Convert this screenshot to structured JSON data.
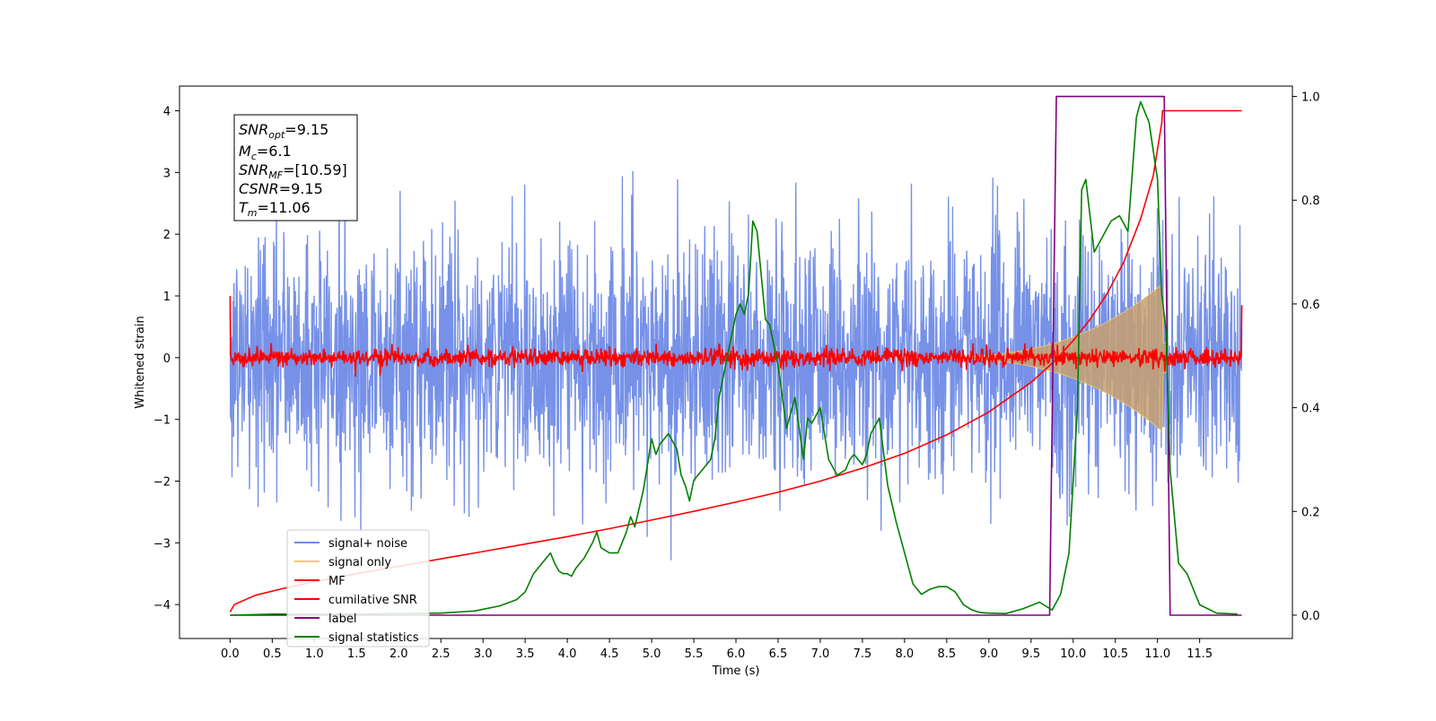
{
  "chart_data": {
    "type": "line",
    "xlabel": "Time (s)",
    "ylabel": "Whitened strain",
    "xlim": [
      -0.6,
      12.6
    ],
    "ylim": [
      -4.55,
      4.4
    ],
    "y2lim": [
      -0.045,
      1.02
    ],
    "x_ticks": [
      0.0,
      0.5,
      1.0,
      1.5,
      2.0,
      2.5,
      3.0,
      3.5,
      4.0,
      4.5,
      5.0,
      5.5,
      6.0,
      6.5,
      7.0,
      7.5,
      8.0,
      8.5,
      9.0,
      9.5,
      10.0,
      10.5,
      11.0,
      11.5
    ],
    "x_tick_labels": [
      "0.0",
      "0.5",
      "1.0",
      "1.5",
      "2.0",
      "2.5",
      "3.0",
      "3.5",
      "4.0",
      "4.5",
      "5.0",
      "5.5",
      "6.0",
      "6.5",
      "7.0",
      "7.5",
      "8.0",
      "8.5",
      "9.0",
      "9.5",
      "10.0",
      "10.5",
      "11.0",
      "11.5"
    ],
    "y_ticks": [
      -4,
      -3,
      -2,
      -1,
      0,
      1,
      2,
      3,
      4
    ],
    "y_tick_labels": [
      "−4",
      "−3",
      "−2",
      "−1",
      "0",
      "1",
      "2",
      "3",
      "4"
    ],
    "y2_ticks": [
      0.0,
      0.2,
      0.4,
      0.6,
      0.8,
      1.0
    ],
    "y2_tick_labels": [
      "0.0",
      "0.2",
      "0.4",
      "0.6",
      "0.8",
      "1.0"
    ],
    "grid": false,
    "legend_position": "lower-left",
    "series": [
      {
        "name": "signal+ noise",
        "axis": "left",
        "color": "#6f8be6",
        "description_values": {
          "mean": 0.0,
          "typical_amplitude": 1.0,
          "peak_max": 4.0,
          "peak_min": -4.15,
          "x_range": [
            0.0,
            12.0
          ]
        }
      },
      {
        "name": "signal only",
        "axis": "left",
        "color": "#f5c96b",
        "chirp": {
          "start_time": 8.0,
          "merger_time": 11.06,
          "peak_amplitude": 1.2
        }
      },
      {
        "name": "MF",
        "axis": "left",
        "color": "#ff0000",
        "description_values": {
          "mean": 0.0,
          "typical_amplitude": 0.12,
          "start_value": 1.0,
          "end_value": 0.85
        }
      },
      {
        "name": "cumilative SNR",
        "axis": "left",
        "color": "#ff0000",
        "x": [
          0.0,
          0.05,
          0.3,
          0.6,
          1.0,
          1.5,
          2.0,
          2.5,
          3.0,
          3.5,
          4.0,
          4.5,
          5.0,
          5.5,
          6.0,
          6.5,
          7.0,
          7.5,
          8.0,
          8.5,
          9.0,
          9.5,
          9.8,
          10.0,
          10.2,
          10.4,
          10.6,
          10.8,
          10.95,
          11.05,
          11.06,
          11.5,
          12.0
        ],
        "y": [
          -4.12,
          -4.0,
          -3.85,
          -3.75,
          -3.63,
          -3.5,
          -3.38,
          -3.26,
          -3.14,
          -3.02,
          -2.9,
          -2.77,
          -2.63,
          -2.49,
          -2.34,
          -2.18,
          -2.0,
          -1.79,
          -1.55,
          -1.25,
          -0.88,
          -0.4,
          -0.03,
          0.28,
          0.62,
          1.03,
          1.55,
          2.25,
          2.95,
          3.8,
          4.0,
          4.0,
          4.0
        ]
      },
      {
        "name": "label",
        "axis": "right",
        "color": "#800080",
        "x": [
          0.0,
          9.72,
          9.8,
          11.08,
          11.15,
          12.0
        ],
        "y": [
          0.0,
          0.0,
          1.0,
          1.0,
          0.0,
          0.0
        ]
      },
      {
        "name": "signal statistics",
        "axis": "right",
        "color": "#008000",
        "x": [
          0.0,
          0.5,
          1.0,
          1.5,
          2.0,
          2.5,
          2.9,
          3.2,
          3.4,
          3.5,
          3.6,
          3.7,
          3.8,
          3.85,
          3.9,
          3.95,
          4.0,
          4.05,
          4.1,
          4.2,
          4.3,
          4.35,
          4.4,
          4.5,
          4.6,
          4.7,
          4.75,
          4.8,
          4.9,
          4.95,
          5.0,
          5.05,
          5.1,
          5.2,
          5.3,
          5.35,
          5.4,
          5.45,
          5.5,
          5.6,
          5.7,
          5.75,
          5.8,
          5.9,
          6.0,
          6.05,
          6.1,
          6.15,
          6.2,
          6.25,
          6.35,
          6.4,
          6.5,
          6.6,
          6.7,
          6.8,
          6.85,
          6.9,
          7.0,
          7.1,
          7.2,
          7.3,
          7.35,
          7.4,
          7.5,
          7.55,
          7.6,
          7.7,
          7.8,
          7.9,
          8.0,
          8.1,
          8.2,
          8.3,
          8.4,
          8.5,
          8.6,
          8.7,
          8.8,
          8.9,
          9.0,
          9.2,
          9.4,
          9.6,
          9.75,
          9.85,
          9.95,
          10.05,
          10.1,
          10.15,
          10.25,
          10.35,
          10.45,
          10.55,
          10.65,
          10.75,
          10.8,
          10.9,
          11.0,
          11.05,
          11.1,
          11.15,
          11.25,
          11.35,
          11.5,
          11.7,
          11.95
        ],
        "y": [
          0.0,
          0.002,
          0.002,
          0.002,
          0.003,
          0.004,
          0.008,
          0.018,
          0.03,
          0.045,
          0.08,
          0.1,
          0.12,
          0.1,
          0.085,
          0.08,
          0.08,
          0.075,
          0.09,
          0.11,
          0.14,
          0.16,
          0.13,
          0.12,
          0.12,
          0.16,
          0.19,
          0.17,
          0.24,
          0.29,
          0.34,
          0.31,
          0.33,
          0.35,
          0.32,
          0.27,
          0.25,
          0.22,
          0.26,
          0.28,
          0.3,
          0.34,
          0.42,
          0.5,
          0.58,
          0.6,
          0.58,
          0.62,
          0.76,
          0.74,
          0.57,
          0.56,
          0.48,
          0.36,
          0.42,
          0.3,
          0.38,
          0.37,
          0.4,
          0.3,
          0.27,
          0.28,
          0.3,
          0.31,
          0.29,
          0.31,
          0.35,
          0.38,
          0.25,
          0.18,
          0.12,
          0.06,
          0.04,
          0.05,
          0.055,
          0.055,
          0.045,
          0.02,
          0.01,
          0.005,
          0.004,
          0.003,
          0.012,
          0.025,
          0.01,
          0.04,
          0.12,
          0.4,
          0.82,
          0.84,
          0.7,
          0.73,
          0.76,
          0.77,
          0.74,
          0.96,
          0.99,
          0.95,
          0.84,
          0.62,
          0.55,
          0.28,
          0.1,
          0.08,
          0.02,
          0.004,
          0.002
        ]
      }
    ]
  },
  "info_box": {
    "snr_opt_label": "SNR",
    "snr_opt_sub": "opt",
    "snr_opt_value": "=9.15",
    "mc_label": "M",
    "mc_sub": "c",
    "mc_value": "=6.1",
    "snr_mf_label": "SNR",
    "snr_mf_sub": "MF",
    "snr_mf_value": "=[10.59]",
    "csnr_label": "CSNR",
    "csnr_value": "=9.15",
    "tm_label": "T",
    "tm_sub": "m",
    "tm_value": "=11.06"
  },
  "legend": {
    "items": [
      {
        "label": "signal+ noise",
        "color": "#6f8be6"
      },
      {
        "label": "signal only",
        "color": "#f5c96b"
      },
      {
        "label": "MF",
        "color": "#ff0000"
      },
      {
        "label": "cumilative SNR",
        "color": "#ff0000"
      },
      {
        "label": "label",
        "color": "#800080"
      },
      {
        "label": "signal statistics",
        "color": "#008000"
      }
    ]
  }
}
